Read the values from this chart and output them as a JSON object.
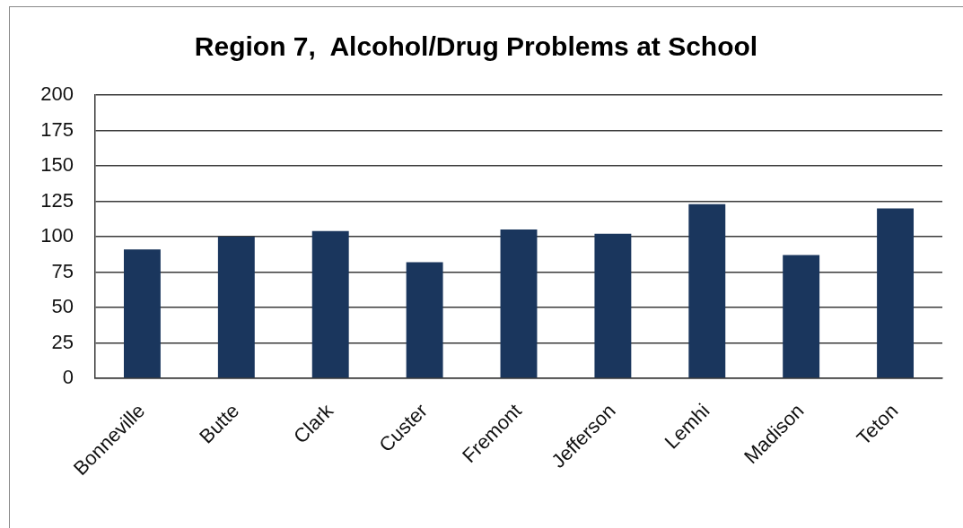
{
  "chart_data": {
    "type": "bar",
    "title": "Region 7,  Alcohol/Drug Problems at School",
    "categories": [
      "Bonneville",
      "Butte",
      "Clark",
      "Custer",
      "Fremont",
      "Jefferson",
      "Lemhi",
      "Madison",
      "Teton"
    ],
    "values": [
      91,
      100,
      104,
      82,
      105,
      102,
      123,
      87,
      120
    ],
    "color": "#1a365d",
    "ylim": [
      0,
      200
    ],
    "yticks": [
      0,
      25,
      50,
      75,
      100,
      125,
      150,
      175,
      200
    ],
    "grid": "y"
  }
}
